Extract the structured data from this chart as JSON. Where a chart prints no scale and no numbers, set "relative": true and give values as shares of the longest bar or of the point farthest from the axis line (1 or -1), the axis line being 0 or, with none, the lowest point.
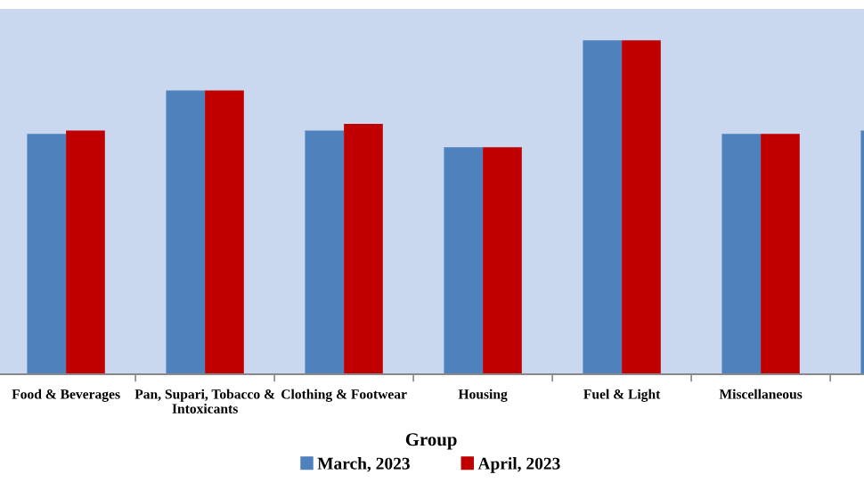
{
  "chart_data": {
    "type": "bar",
    "relative": true,
    "xlabel": "Group",
    "categories": [
      "Food & Beverages",
      "Pan, Supari, Tobacco &\nIntoxicants",
      "Clothing & Footwear",
      "Housing",
      "Fuel & Light",
      "Miscellaneous",
      null
    ],
    "series": [
      {
        "name": "March, 2023",
        "color": "#4f81bd",
        "values": [
          0.72,
          0.85,
          0.73,
          0.68,
          1,
          0.72,
          0.73
        ]
      },
      {
        "name": "April, 2023",
        "color": "#c00000",
        "values": [
          0.73,
          0.85,
          0.75,
          0.68,
          1,
          0.72,
          null
        ]
      }
    ],
    "legend": "bottom",
    "grid": false
  }
}
